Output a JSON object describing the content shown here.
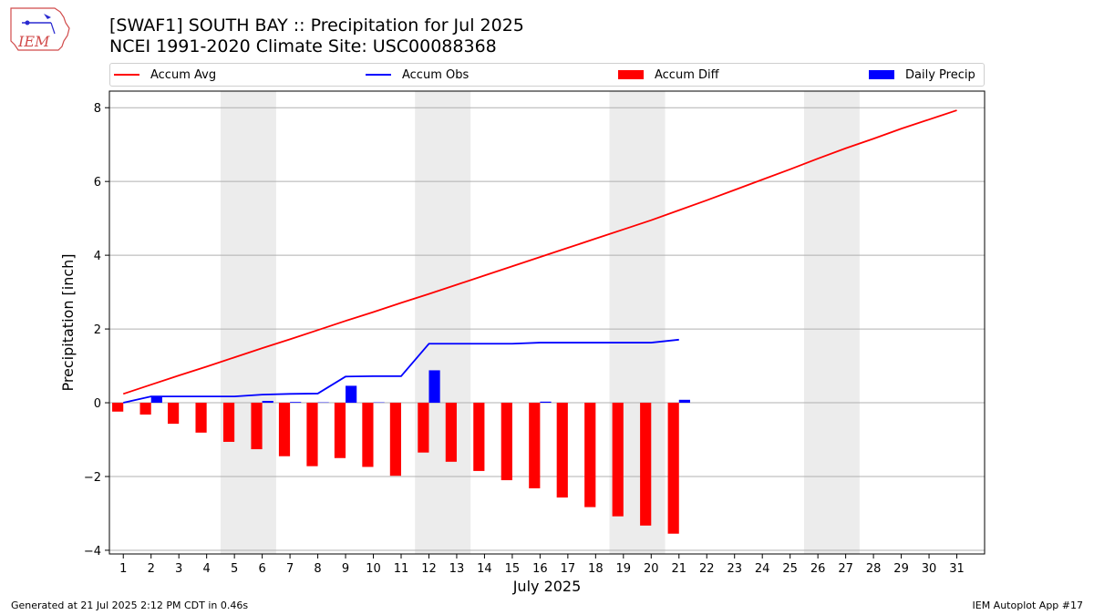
{
  "logo": {
    "text": "IEM"
  },
  "header": {
    "title": "[SWAF1] SOUTH BAY :: Precipitation for Jul 2025",
    "subtitle": "NCEI 1991-2020 Climate Site: USC00088368"
  },
  "legend": {
    "items": [
      {
        "label": "Accum Avg",
        "color": "#ff0000",
        "kind": "line"
      },
      {
        "label": "Accum Obs",
        "color": "#0000ff",
        "kind": "line"
      },
      {
        "label": "Accum Diff",
        "color": "#ff0000",
        "kind": "bar"
      },
      {
        "label": "Daily Precip",
        "color": "#0000ff",
        "kind": "bar"
      }
    ]
  },
  "chart_data": {
    "type": "bar",
    "xlabel": "July 2025",
    "ylabel": "Precipitation [inch]",
    "xlim": [
      0.5,
      32
    ],
    "ylim": [
      -4.1,
      8.45
    ],
    "yticks": [
      -4,
      -2,
      0,
      2,
      4,
      6,
      8
    ],
    "ytick_labels": [
      "−4",
      "−2",
      "0",
      "2",
      "4",
      "6",
      "8"
    ],
    "days": [
      1,
      2,
      3,
      4,
      5,
      6,
      7,
      8,
      9,
      10,
      11,
      12,
      13,
      14,
      15,
      16,
      17,
      18,
      19,
      20,
      21,
      22,
      23,
      24,
      25,
      26,
      27,
      28,
      29,
      30,
      31
    ],
    "weekend_shading": [
      [
        4.5,
        6.5
      ],
      [
        11.5,
        13.5
      ],
      [
        18.5,
        20.5
      ],
      [
        25.5,
        27.5
      ]
    ],
    "grid": "horizontal",
    "series": [
      {
        "name": "Accum Avg",
        "kind": "line",
        "color": "#ff0000",
        "values": [
          0.24,
          0.49,
          0.74,
          0.98,
          1.23,
          1.48,
          1.72,
          1.97,
          2.22,
          2.46,
          2.71,
          2.95,
          3.2,
          3.45,
          3.7,
          3.95,
          4.2,
          4.45,
          4.7,
          4.95,
          5.22,
          5.49,
          5.77,
          6.05,
          6.33,
          6.62,
          6.9,
          7.16,
          7.43,
          7.68,
          7.93
        ]
      },
      {
        "name": "Accum Obs",
        "kind": "line",
        "color": "#0000ff",
        "values": [
          0.0,
          0.17,
          0.17,
          0.17,
          0.17,
          0.22,
          0.24,
          0.25,
          0.71,
          0.72,
          0.72,
          1.6,
          1.6,
          1.6,
          1.6,
          1.63,
          1.63,
          1.63,
          1.63,
          1.63,
          1.71
        ]
      },
      {
        "name": "Accum Diff",
        "kind": "bar",
        "color": "#ff0000",
        "values": [
          -0.24,
          -0.32,
          -0.57,
          -0.81,
          -1.06,
          -1.26,
          -1.45,
          -1.72,
          -1.5,
          -1.74,
          -1.98,
          -1.35,
          -1.6,
          -1.85,
          -2.1,
          -2.32,
          -2.57,
          -2.83,
          -3.08,
          -3.33,
          -3.55
        ]
      },
      {
        "name": "Daily Precip",
        "kind": "bar",
        "color": "#0000ff",
        "values": [
          0.0,
          0.17,
          0.0,
          0.0,
          0.0,
          0.05,
          0.02,
          0.01,
          0.46,
          0.01,
          0.0,
          0.88,
          0.0,
          0.0,
          0.0,
          0.03,
          0.0,
          0.0,
          0.0,
          0.0,
          0.08
        ]
      }
    ]
  },
  "footer": {
    "left": "Generated at 21 Jul 2025 2:12 PM CDT in 0.46s",
    "right": "IEM Autoplot App #17"
  }
}
